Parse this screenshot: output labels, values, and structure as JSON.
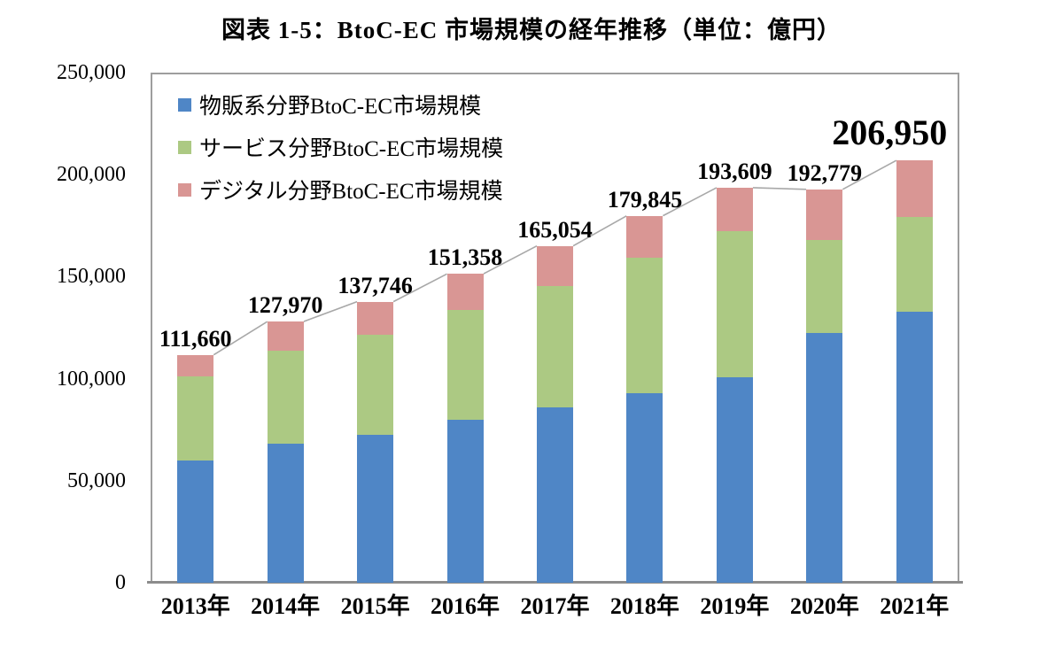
{
  "title": "図表 1-5：BtoC-EC 市場規模の経年推移（単位：億円）",
  "chart_data": {
    "type": "bar",
    "stacked": true,
    "title": "図表 1-5：BtoC-EC 市場規模の経年推移（単位：億円）",
    "unit": "億円",
    "categories": [
      "2013年",
      "2014年",
      "2015年",
      "2016年",
      "2017年",
      "2018年",
      "2019年",
      "2020年",
      "2021年"
    ],
    "series": [
      {
        "name": "物販系分野BtoC-EC市場規模",
        "color": "#4F86C6",
        "values": [
          59931,
          68042,
          72398,
          80043,
          86008,
          92992,
          100515,
          122333,
          132865
        ]
      },
      {
        "name": "サービス分野BtoC-EC市場規模",
        "color": "#ACC983",
        "values": [
          41190,
          45864,
          49014,
          53532,
          59568,
          66471,
          71672,
          45832,
          46424
        ]
      },
      {
        "name": "デジタル分野BtoC-EC市場規模",
        "color": "#D99694",
        "values": [
          10539,
          14064,
          16334,
          17782,
          19478,
          20382,
          21422,
          24614,
          27661
        ]
      }
    ],
    "totals": [
      111660,
      127970,
      137746,
      151358,
      165054,
      179845,
      193609,
      192779,
      206950
    ],
    "total_labels": [
      "111,660",
      "127,970",
      "137,746",
      "151,358",
      "165,054",
      "179,845",
      "193,609",
      "192,779",
      "206,950"
    ],
    "highlighted_total_label": "206,950",
    "ylim": [
      0,
      250000
    ],
    "yticks": [
      {
        "value": 0,
        "label": "0"
      },
      {
        "value": 50000,
        "label": "50,000"
      },
      {
        "value": 100000,
        "label": "100,000"
      },
      {
        "value": 150000,
        "label": "150,000"
      },
      {
        "value": 200000,
        "label": "200,000"
      },
      {
        "value": 250000,
        "label": "250,000"
      }
    ],
    "grid": false,
    "legend_position": "top-left-inside",
    "connector_line_color": "#a8a8a8",
    "plot_border_color": "#9e9e9e",
    "axis_line_color": "#8c8c8c"
  }
}
